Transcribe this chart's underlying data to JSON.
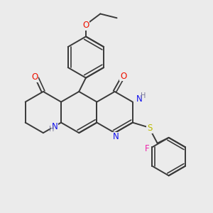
{
  "background_color": "#ebebeb",
  "bond_color": "#3a3a3a",
  "bond_width": 1.4,
  "colors": {
    "O": "#ee1100",
    "N": "#1111ee",
    "S": "#bbbb00",
    "F": "#ee22aa",
    "H_label": "#777799",
    "C": "#3a3a3a"
  },
  "font_size_atom": 8.5,
  "font_size_h": 7.0
}
